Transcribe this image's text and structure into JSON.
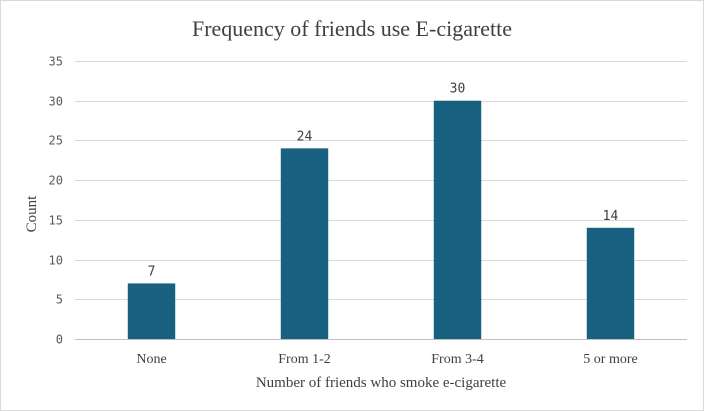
{
  "chart_data": {
    "type": "bar",
    "title": "Frequency of friends use E-cigarette",
    "xlabel": "Number of friends who smoke e-cigarette",
    "ylabel": "Count",
    "categories": [
      "None",
      "From 1-2",
      "From 3-4",
      "5 or more"
    ],
    "values": [
      7,
      24,
      30,
      14
    ],
    "ylim": [
      0,
      35
    ],
    "yticks": [
      0,
      5,
      10,
      15,
      20,
      25,
      30,
      35
    ],
    "grid": true,
    "legend": "none",
    "bar_color": "#17607f"
  }
}
